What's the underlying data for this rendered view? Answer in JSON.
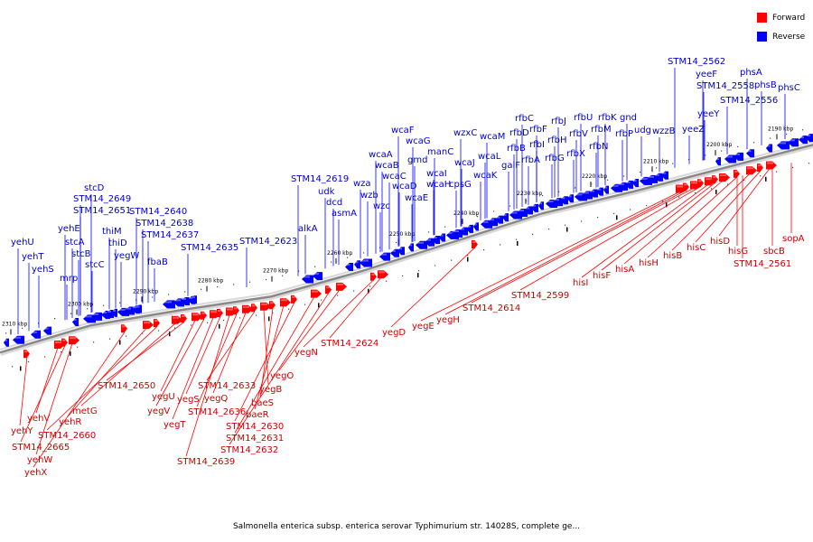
{
  "legend": {
    "forward": {
      "label": "Forward",
      "color": "#ff0000"
    },
    "reverse": {
      "label": "Reverse",
      "color": "#0000ff"
    }
  },
  "caption": "Salmonella enterica subsp. enterica serovar Typhimurium str. 14028S, complete ge...",
  "backbone_color": "#888888",
  "ticks": [
    "2310 kbp",
    "2300 kbp",
    "2290 kbp",
    "2280 kbp",
    "2270 kbp",
    "2260 kbp",
    "2250 kbp",
    "2240 kbp",
    "2230 kbp",
    "2220 kbp",
    "2210 kbp",
    "2200 kbp",
    "2190 kbp"
  ],
  "reverse_genes": [
    "yehU",
    "yehT",
    "yehS",
    "yehE",
    "mrp",
    "stcA",
    "stcB",
    "stcC",
    "stcD",
    "STM14_2649",
    "STM14_2651",
    "thiM",
    "thiD",
    "yegW",
    "STM14_2640",
    "STM14_2638",
    "STM14_2637",
    "fbaB",
    "STM14_2635",
    "STM14_2623",
    "alkA",
    "STM14_2619",
    "udk",
    "dcd",
    "asmA",
    "wza",
    "wzb",
    "wzc",
    "wcaA",
    "wcaB",
    "wcaC",
    "wcaF",
    "wcaG",
    "gmd",
    "wcaD",
    "wcaE",
    "wcaI",
    "manC",
    "wcaH",
    "cpsG",
    "wzxC",
    "wcaJ",
    "wcaM",
    "wcaL",
    "wcaK",
    "galF",
    "rfbC",
    "rfbD",
    "rfbB",
    "rfbF",
    "rfbI",
    "rfbA",
    "rfbJ",
    "rfbH",
    "rfbG",
    "rfbU",
    "rfbV",
    "rfbX",
    "rfbK",
    "rfbM",
    "rfbN",
    "rfbP",
    "gnd",
    "udg",
    "wzzB",
    "yeeZ",
    "yeeY",
    "STM14_2562",
    "yeeF",
    "STM14_2558",
    "STM14_2556",
    "phsA",
    "phsB",
    "phsC"
  ],
  "forward_genes": [
    "yehY",
    "yehV",
    "STM14_2665",
    "yehW",
    "yehX",
    "yehR",
    "STM14_2660",
    "metG",
    "STM14_2650",
    "yegU",
    "yegV",
    "yegT",
    "yegS",
    "STM14_2639",
    "STM14_2636",
    "yegQ",
    "STM14_2633",
    "yegB",
    "baeS",
    "baeR",
    "STM14_2630",
    "STM14_2631",
    "STM14_2632",
    "yegO",
    "yegN",
    "STM14_2624",
    "yegD",
    "yegE",
    "yegH",
    "STM14_2614",
    "STM14_2599",
    "hisI",
    "hisF",
    "hisA",
    "hisH",
    "hisB",
    "hisC",
    "hisD",
    "hisG",
    "sbcB",
    "STM14_2561",
    "sopA"
  ]
}
